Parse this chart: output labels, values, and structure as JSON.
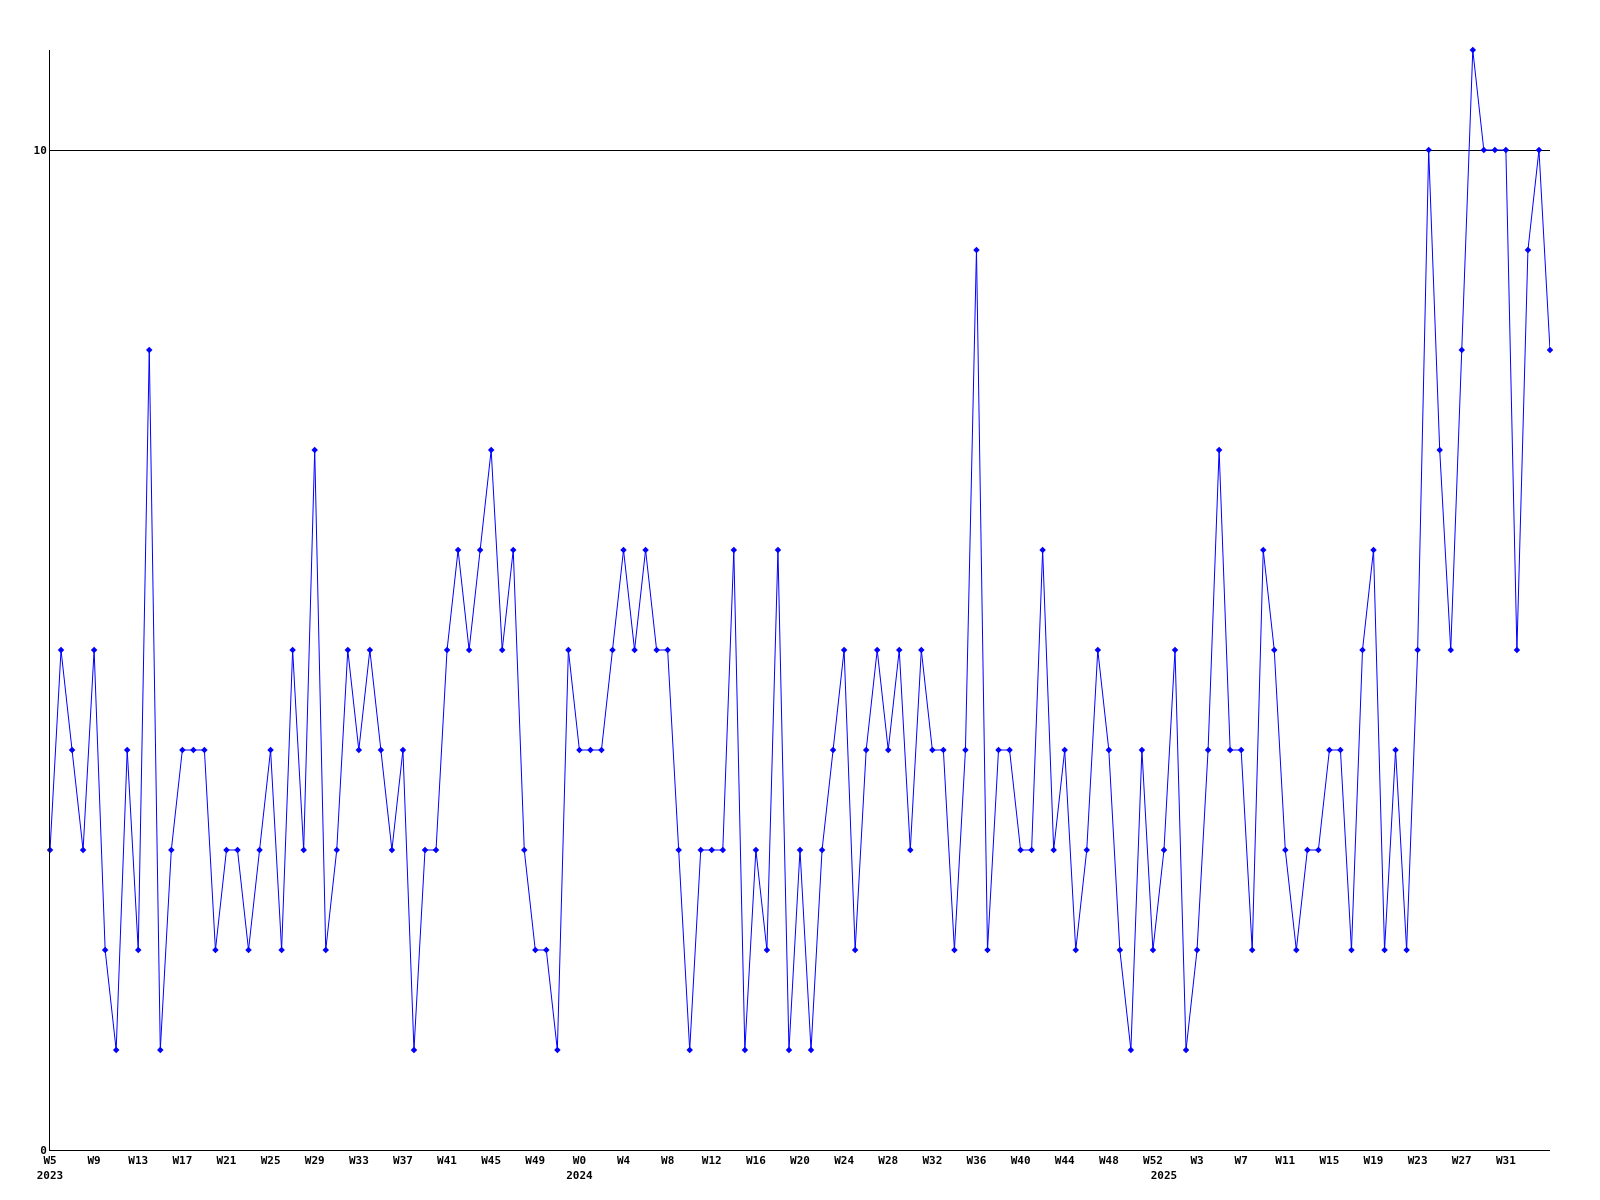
{
  "chart_data": {
    "type": "line",
    "categories": [
      "W5\n2023",
      null,
      null,
      null,
      "W9",
      null,
      null,
      null,
      "W13",
      null,
      null,
      null,
      "W17",
      null,
      null,
      null,
      "W21",
      null,
      null,
      null,
      "W25",
      null,
      null,
      null,
      "W29",
      null,
      null,
      null,
      "W33",
      null,
      null,
      null,
      "W37",
      null,
      null,
      null,
      "W41",
      null,
      null,
      null,
      "W45",
      null,
      null,
      null,
      "W49",
      null,
      null,
      null,
      "W0\n2024",
      null,
      null,
      null,
      "W4",
      null,
      null,
      null,
      "W8",
      null,
      null,
      null,
      "W12",
      null,
      null,
      null,
      "W16",
      null,
      null,
      null,
      "W20",
      null,
      null,
      null,
      "W24",
      null,
      null,
      null,
      "W28",
      null,
      null,
      null,
      "W32",
      null,
      null,
      null,
      "W36",
      null,
      null,
      null,
      "W40",
      null,
      null,
      null,
      "W44",
      null,
      null,
      null,
      "W48",
      null,
      null,
      null,
      "W52",
      "\n2025",
      null,
      null,
      "W3",
      null,
      null,
      null,
      "W7",
      null,
      null,
      null,
      "W11",
      null,
      null,
      null,
      "W15",
      null,
      null,
      null,
      "W19",
      null,
      null,
      null,
      "W23",
      null,
      null,
      null,
      "W27",
      null,
      null,
      null,
      "W31",
      null,
      null,
      null,
      null
    ],
    "values": [
      3,
      5,
      4,
      3,
      5,
      2,
      1,
      4,
      2,
      8,
      1,
      3,
      4,
      4,
      4,
      2,
      3,
      3,
      2,
      3,
      4,
      2,
      5,
      3,
      7,
      2,
      3,
      5,
      4,
      5,
      4,
      3,
      4,
      1,
      3,
      3,
      5,
      6,
      5,
      6,
      7,
      5,
      6,
      3,
      2,
      2,
      1,
      5,
      4,
      4,
      4,
      5,
      6,
      5,
      6,
      5,
      5,
      3,
      1,
      3,
      3,
      3,
      6,
      1,
      3,
      2,
      6,
      1,
      3,
      1,
      3,
      4,
      5,
      2,
      4,
      5,
      4,
      5,
      3,
      5,
      4,
      4,
      2,
      4,
      9,
      2,
      4,
      4,
      3,
      3,
      6,
      3,
      4,
      2,
      3,
      5,
      4,
      2,
      1,
      4,
      2,
      3,
      5,
      1,
      2,
      4,
      7,
      4,
      4,
      2,
      6,
      5,
      3,
      2,
      3,
      3,
      4,
      4,
      2,
      5,
      6,
      2,
      4,
      2,
      5,
      10,
      7,
      5,
      8,
      11,
      10,
      10,
      10,
      5,
      9,
      10,
      8
    ],
    "color": "#0000ff",
    "ylim": [
      0,
      11
    ],
    "yticks": [
      0,
      10
    ],
    "grid": "y",
    "marker": "diamond"
  }
}
